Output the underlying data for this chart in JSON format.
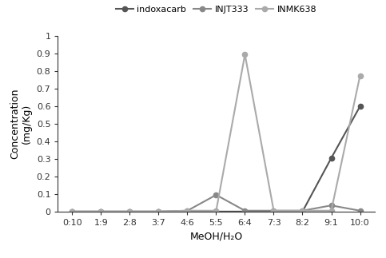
{
  "x_labels": [
    "0:10",
    "1:9",
    "2:8",
    "3:7",
    "4:6",
    "5:5",
    "6:4",
    "7:3",
    "8:2",
    "9:1",
    "10:0"
  ],
  "series": {
    "indoxacarb": [
      0.0,
      0.0,
      0.0,
      0.0,
      0.0,
      0.0,
      0.0,
      0.0,
      0.0,
      0.305,
      0.6
    ],
    "INJT333": [
      0.0,
      0.0,
      0.0,
      0.0,
      0.005,
      0.095,
      0.005,
      0.005,
      0.005,
      0.035,
      0.005
    ],
    "INMK638": [
      0.0,
      0.0,
      0.0,
      0.0,
      0.005,
      0.005,
      0.895,
      0.005,
      0.005,
      0.005,
      0.775
    ]
  },
  "colors": {
    "indoxacarb": "#555555",
    "INJT333": "#888888",
    "INMK638": "#aaaaaa"
  },
  "ylabel_line1": "Concentration",
  "ylabel_line2": "(mg/Kg)",
  "ylim": [
    0,
    1.0
  ],
  "yticks": [
    0,
    0.1,
    0.2,
    0.3,
    0.4,
    0.5,
    0.6,
    0.7,
    0.8,
    0.9,
    1
  ],
  "ytick_labels": [
    "0",
    "0.1",
    "0.2",
    "0.3",
    "0.4",
    "0.5",
    "0.6",
    "0.7",
    "0.8",
    "0.9",
    "1"
  ],
  "legend_labels": [
    "indoxacarb",
    "INJT333",
    "INMK638"
  ],
  "marker": "o",
  "linewidth": 1.5,
  "markersize": 4.5,
  "tick_fontsize": 8,
  "label_fontsize": 9
}
